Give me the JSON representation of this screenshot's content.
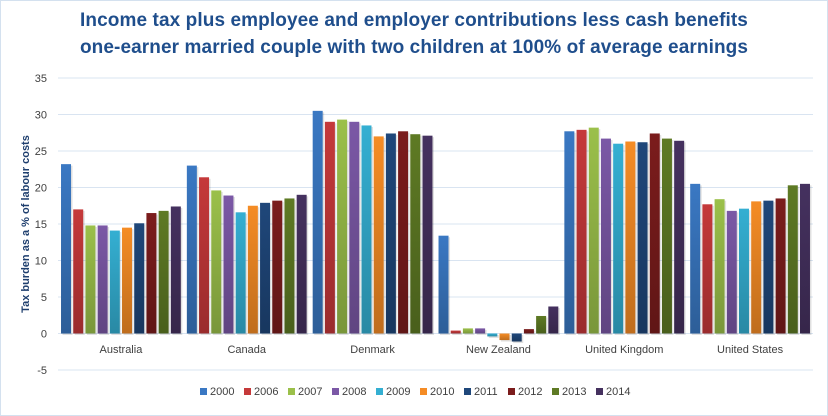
{
  "chart_data": {
    "type": "bar",
    "title": "Income tax plus employee and employer contributions less cash benefits",
    "subtitle": "one-earner married couple with two children at 100% of average earnings",
    "xlabel": "",
    "ylabel": "Tax burden as a % of labour costs",
    "ylim": [
      -5,
      35
    ],
    "yticks": [
      -5,
      0,
      5,
      10,
      15,
      20,
      25,
      30,
      35
    ],
    "grid": true,
    "legend_position": "bottom",
    "categories": [
      "Australia",
      "Canada",
      "Denmark",
      "New Zealand",
      "United Kingdom",
      "United States"
    ],
    "series": [
      {
        "name": "2000",
        "color": "#3a78c3",
        "values": [
          23.2,
          23.0,
          30.5,
          13.4,
          27.7,
          20.5
        ]
      },
      {
        "name": "2006",
        "color": "#c5393a",
        "values": [
          17.0,
          21.4,
          29.0,
          0.4,
          27.9,
          17.7
        ]
      },
      {
        "name": "2007",
        "color": "#9bc04a",
        "values": [
          14.8,
          19.6,
          29.3,
          0.7,
          28.2,
          18.4
        ]
      },
      {
        "name": "2008",
        "color": "#7b58a6",
        "values": [
          14.8,
          18.9,
          29.0,
          0.7,
          26.7,
          16.8
        ]
      },
      {
        "name": "2009",
        "color": "#34afd2",
        "values": [
          14.1,
          16.6,
          28.5,
          -0.4,
          26.0,
          17.1
        ]
      },
      {
        "name": "2010",
        "color": "#f58c25",
        "values": [
          14.5,
          17.5,
          27.0,
          -0.9,
          26.3,
          18.1
        ]
      },
      {
        "name": "2011",
        "color": "#1f477a",
        "values": [
          15.1,
          17.9,
          27.4,
          -1.1,
          26.2,
          18.2
        ]
      },
      {
        "name": "2012",
        "color": "#7b1c1c",
        "values": [
          16.5,
          18.2,
          27.7,
          0.6,
          27.4,
          18.5
        ]
      },
      {
        "name": "2013",
        "color": "#5e7a24",
        "values": [
          16.8,
          18.5,
          27.3,
          2.4,
          26.7,
          20.3
        ]
      },
      {
        "name": "2014",
        "color": "#45315f",
        "values": [
          17.4,
          19.0,
          27.1,
          3.7,
          26.4,
          20.5
        ]
      }
    ]
  }
}
